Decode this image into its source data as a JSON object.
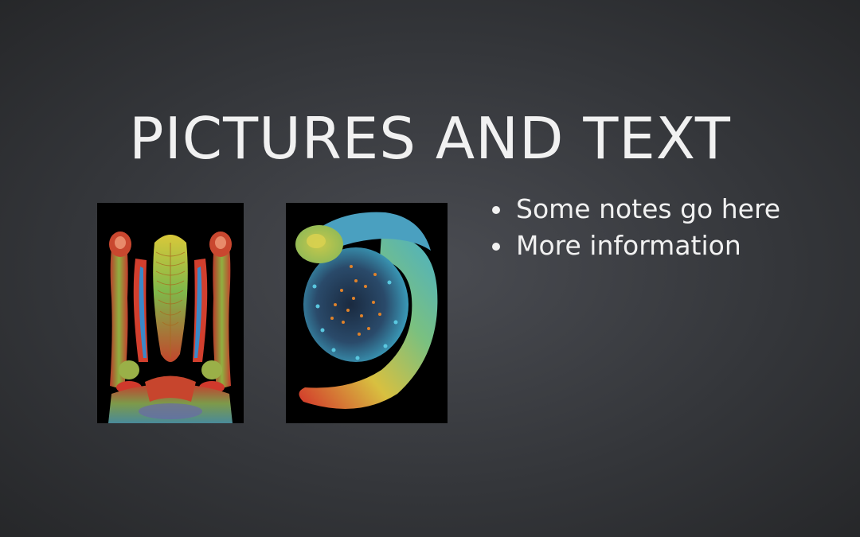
{
  "slide": {
    "title": "PICTURES AND TEXT",
    "notes": [
      "Some notes go here",
      "More information"
    ]
  },
  "colors": {
    "text": "#f1f1f1",
    "background_center": "#4a4c52",
    "background_edge": "#242527"
  }
}
